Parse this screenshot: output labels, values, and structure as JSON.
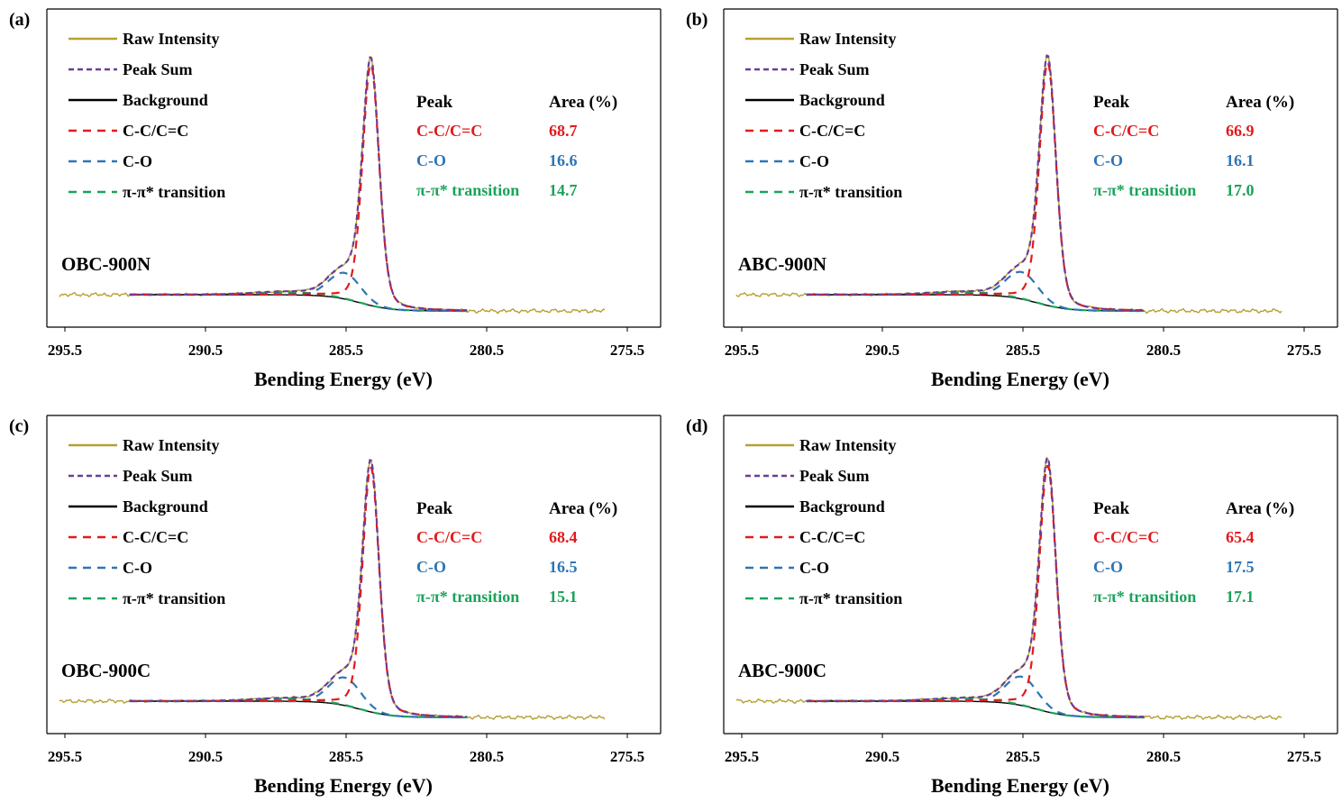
{
  "colors": {
    "raw": "#b5a033",
    "sum": "#6a3d9a",
    "background": "#000000",
    "cc": "#e31a1c",
    "co": "#2e75b6",
    "pi": "#1aa35a",
    "axis": "#000000"
  },
  "legend": [
    "Raw Intensity",
    "Peak Sum",
    "Background",
    "C-C/C=C",
    "C-O",
    "π-π* transition"
  ],
  "table_headers": {
    "peak": "Peak",
    "area": "Area (%)"
  },
  "chart_data": [
    {
      "type": "line",
      "panel_label": "(a)",
      "sample": "OBC-900N",
      "xlabel": "Bending Energy (eV)",
      "xlim": [
        295.5,
        275.5
      ],
      "xticks": [
        "295.5",
        "290.5",
        "285.5",
        "280.5",
        "275.5"
      ],
      "peaks": [
        {
          "name": "C-C/C=C",
          "center": 284.7,
          "area_pct": "68.7"
        },
        {
          "name": "C-O",
          "center": 285.6,
          "area_pct": "16.6"
        },
        {
          "name": "π-π* transition",
          "center": 287.3,
          "area_pct": "14.7"
        }
      ]
    },
    {
      "type": "line",
      "panel_label": "(b)",
      "sample": "ABC-900N",
      "xlabel": "Bending Energy (eV)",
      "xlim": [
        295.5,
        275.5
      ],
      "xticks": [
        "295.5",
        "290.5",
        "285.5",
        "280.5",
        "275.5"
      ],
      "peaks": [
        {
          "name": "C-C/C=C",
          "center": 284.7,
          "area_pct": "66.9"
        },
        {
          "name": "C-O",
          "center": 285.6,
          "area_pct": "16.1"
        },
        {
          "name": "π-π* transition",
          "center": 287.3,
          "area_pct": "17.0"
        }
      ]
    },
    {
      "type": "line",
      "panel_label": "(c)",
      "sample": "OBC-900C",
      "xlabel": "Bending Energy (eV)",
      "xlim": [
        295.5,
        275.5
      ],
      "xticks": [
        "295.5",
        "290.5",
        "285.5",
        "280.5",
        "275.5"
      ],
      "peaks": [
        {
          "name": "C-C/C=C",
          "center": 284.7,
          "area_pct": "68.4"
        },
        {
          "name": "C-O",
          "center": 285.6,
          "area_pct": "16.5"
        },
        {
          "name": "π-π* transition",
          "center": 287.3,
          "area_pct": "15.1"
        }
      ]
    },
    {
      "type": "line",
      "panel_label": "(d)",
      "sample": "ABC-900C",
      "xlabel": "Bending Energy (eV)",
      "xlim": [
        295.5,
        275.5
      ],
      "xticks": [
        "295.5",
        "290.5",
        "285.5",
        "280.5",
        "275.5"
      ],
      "peaks": [
        {
          "name": "C-C/C=C",
          "center": 284.7,
          "area_pct": "65.4"
        },
        {
          "name": "C-O",
          "center": 285.6,
          "area_pct": "17.5"
        },
        {
          "name": "π-π* transition",
          "center": 287.3,
          "area_pct": "17.1"
        }
      ]
    }
  ]
}
